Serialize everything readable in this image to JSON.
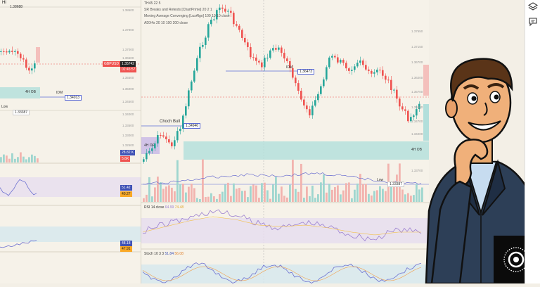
{
  "left_panel": {
    "hi_label": "Hi",
    "hi_price": "1.38688",
    "ob_label": "4H OB",
    "idm_label": "IDM",
    "idm_price": "1.34013",
    "low_label": "Low",
    "low_price": "1.33387",
    "symbol_tag": "GBPUSD",
    "price_tag": "1.35742",
    "time_tag": "02:45:57",
    "vol_tag_1": "28.82 K",
    "vol_tag_2": "5.6K",
    "stoch_tag_1": "51.42",
    "stoch_tag_2": "40.27",
    "rsi_tag_1": "48.18",
    "rsi_tag_2": "47.91",
    "axis_ticks": [
      "1.38600",
      "1.37800",
      "1.37000",
      "1.36500",
      "1.35500",
      "1.35000",
      "1.34500",
      "1.34000",
      "1.33500",
      "1.33000",
      "1.32500"
    ]
  },
  "main_panel": {
    "indicator_1": "TH45 22 5",
    "indicator_2": "SR Breaks and Retests [ChartPrime] 20 2 1",
    "indicator_3": "Moving Average Converging [LuxAlgo] 100 10 10 close",
    "indicator_4": "ADX4s 20 10 100 200 close",
    "choch_label": "Choch Bull",
    "choch_price": "1.34946",
    "ob_label": "4H OF",
    "idm_label": "IDM",
    "idm_price": "1.36473",
    "low_label": "Low",
    "low_price": "1.33387",
    "ob_right_label": "4H OB",
    "rsi_title": "RSI 14 close",
    "rsi_value": "64.99",
    "rsi_value_2": "74.48",
    "stoch_title": "Stoch 10 3 3",
    "stoch_value": "51.84",
    "stoch_value_2": "56.08",
    "axis_ticks": [
      "1.37650",
      "1.37150",
      "1.36700",
      "1.36200",
      "1.35700",
      "1.35200",
      "1.34700",
      "1.34200",
      "1.33700"
    ]
  },
  "colors": {
    "bull": "#26a69a",
    "bear": "#ef5350",
    "zone": "#b2dfdb",
    "rsi_band": "#e6dcef",
    "rsi_line": "#9b7fd0",
    "toolbar_bg": "#ffffff"
  },
  "icons": [
    "layers-icon",
    "chat-icon",
    "person-icon",
    "brand-badge-icon"
  ]
}
